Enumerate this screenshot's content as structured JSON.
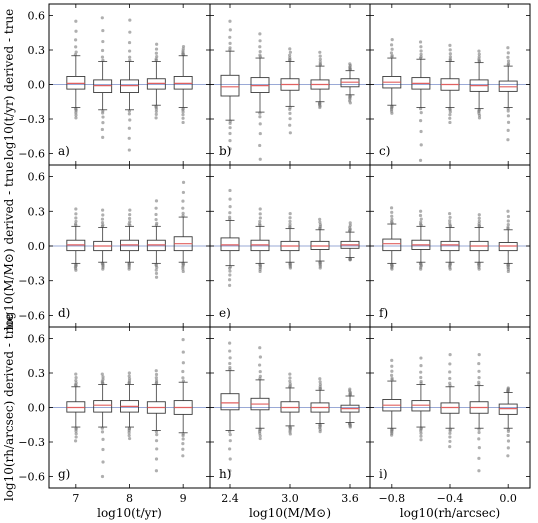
{
  "chart_data": {
    "type": "box",
    "layout": "3x3 grid, shared axes",
    "row_ylabels": [
      "log10(t/yr) derived - true",
      "log10(M/M⊙) derived - true",
      "log10(rh/arcsec) derived - true"
    ],
    "col_xlabels": [
      "log10(t/yr)",
      "log10(M/M⊙)",
      "log10(rh/arcsec)"
    ],
    "columns": [
      {
        "ticks": [
          7,
          8,
          9
        ],
        "tick_labels": [
          "7",
          "8",
          "9"
        ],
        "xlim": [
          6.5,
          9.5
        ],
        "box_x": [
          7,
          7.5,
          8,
          8.5,
          9
        ]
      },
      {
        "ticks": [
          2.4,
          3.0,
          3.6
        ],
        "tick_labels": [
          "2.4",
          "3.0",
          "3.6"
        ],
        "xlim": [
          2.2,
          3.8
        ],
        "box_x": [
          2.4,
          2.7,
          3.0,
          3.3,
          3.6
        ]
      },
      {
        "ticks": [
          -0.8,
          -0.4,
          0.0
        ],
        "tick_labels": [
          "−0.8",
          "−0.4",
          "0.0"
        ],
        "xlim": [
          -0.95,
          0.15
        ],
        "box_x": [
          -0.8,
          -0.6,
          -0.4,
          -0.2,
          0.0
        ]
      }
    ],
    "ylim": [
      -0.7,
      0.7
    ],
    "yticks": [
      0.6,
      0.3,
      0.0,
      -0.3,
      -0.6
    ],
    "ytick_labels": [
      "0.6",
      "0.3",
      "0.0",
      "−0.3",
      "−0.6"
    ],
    "zero_line": 0.0,
    "colors": {
      "box": "#3a3a3a",
      "median": "#e06060",
      "zero": "#9aa9d6",
      "flier": "#7a7a7a"
    },
    "panels": [
      {
        "label": "a)",
        "row": 0,
        "col": 0,
        "boxes": [
          {
            "q1": -0.04,
            "med": 0.01,
            "q3": 0.07,
            "wlo": -0.2,
            "whi": 0.25,
            "lo": -0.29,
            "hi": 0.55
          },
          {
            "q1": -0.07,
            "med": -0.01,
            "q3": 0.04,
            "wlo": -0.22,
            "whi": 0.2,
            "lo": -0.46,
            "hi": 0.58
          },
          {
            "q1": -0.07,
            "med": -0.01,
            "q3": 0.04,
            "wlo": -0.22,
            "whi": 0.2,
            "lo": -0.57,
            "hi": 0.56
          },
          {
            "q1": -0.04,
            "med": 0.01,
            "q3": 0.05,
            "wlo": -0.18,
            "whi": 0.2,
            "lo": -0.29,
            "hi": 0.35
          },
          {
            "q1": -0.04,
            "med": 0.01,
            "q3": 0.07,
            "wlo": -0.2,
            "whi": 0.25,
            "lo": -0.33,
            "hi": 0.33
          }
        ]
      },
      {
        "label": "b)",
        "row": 0,
        "col": 1,
        "boxes": [
          {
            "q1": -0.1,
            "med": -0.02,
            "q3": 0.08,
            "wlo": -0.31,
            "whi": 0.29,
            "lo": -0.56,
            "hi": 0.55
          },
          {
            "q1": -0.07,
            "med": -0.01,
            "q3": 0.06,
            "wlo": -0.24,
            "whi": 0.23,
            "lo": -0.65,
            "hi": 0.44
          },
          {
            "q1": -0.05,
            "med": 0.0,
            "q3": 0.05,
            "wlo": -0.19,
            "whi": 0.2,
            "lo": -0.42,
            "hi": 0.31
          },
          {
            "q1": -0.04,
            "med": 0.0,
            "q3": 0.04,
            "wlo": -0.15,
            "whi": 0.16,
            "lo": -0.2,
            "hi": 0.28
          },
          {
            "q1": -0.02,
            "med": 0.02,
            "q3": 0.05,
            "wlo": -0.09,
            "whi": 0.12,
            "lo": -0.16,
            "hi": 0.18
          }
        ]
      },
      {
        "label": "c)",
        "row": 0,
        "col": 2,
        "boxes": [
          {
            "q1": -0.03,
            "med": 0.02,
            "q3": 0.07,
            "wlo": -0.18,
            "whi": 0.23,
            "lo": -0.25,
            "hi": 0.39
          },
          {
            "q1": -0.04,
            "med": 0.01,
            "q3": 0.06,
            "wlo": -0.2,
            "whi": 0.22,
            "lo": -0.66,
            "hi": 0.37
          },
          {
            "q1": -0.05,
            "med": 0.0,
            "q3": 0.05,
            "wlo": -0.2,
            "whi": 0.2,
            "lo": -0.33,
            "hi": 0.34
          },
          {
            "q1": -0.06,
            "med": -0.01,
            "q3": 0.04,
            "wlo": -0.21,
            "whi": 0.19,
            "lo": -0.29,
            "hi": 0.29
          },
          {
            "q1": -0.06,
            "med": -0.02,
            "q3": 0.03,
            "wlo": -0.2,
            "whi": 0.16,
            "lo": -0.48,
            "hi": 0.32
          }
        ]
      },
      {
        "label": "d)",
        "row": 1,
        "col": 0,
        "boxes": [
          {
            "q1": -0.04,
            "med": 0.01,
            "q3": 0.05,
            "wlo": -0.15,
            "whi": 0.17,
            "lo": -0.21,
            "hi": 0.32
          },
          {
            "q1": -0.04,
            "med": 0.0,
            "q3": 0.04,
            "wlo": -0.14,
            "whi": 0.16,
            "lo": -0.2,
            "hi": 0.31
          },
          {
            "q1": -0.04,
            "med": 0.01,
            "q3": 0.05,
            "wlo": -0.14,
            "whi": 0.17,
            "lo": -0.2,
            "hi": 0.31
          },
          {
            "q1": -0.04,
            "med": 0.01,
            "q3": 0.05,
            "wlo": -0.15,
            "whi": 0.17,
            "lo": -0.27,
            "hi": 0.39
          },
          {
            "q1": -0.04,
            "med": 0.02,
            "q3": 0.08,
            "wlo": -0.14,
            "whi": 0.25,
            "lo": -0.22,
            "hi": 0.55
          }
        ]
      },
      {
        "label": "e)",
        "row": 1,
        "col": 1,
        "boxes": [
          {
            "q1": -0.04,
            "med": 0.01,
            "q3": 0.07,
            "wlo": -0.17,
            "whi": 0.22,
            "lo": -0.34,
            "hi": 0.48
          },
          {
            "q1": -0.04,
            "med": 0.01,
            "q3": 0.05,
            "wlo": -0.15,
            "whi": 0.17,
            "lo": -0.22,
            "hi": 0.32
          },
          {
            "q1": -0.04,
            "med": 0.0,
            "q3": 0.04,
            "wlo": -0.14,
            "whi": 0.15,
            "lo": -0.19,
            "hi": 0.28
          },
          {
            "q1": -0.03,
            "med": 0.0,
            "q3": 0.04,
            "wlo": -0.13,
            "whi": 0.14,
            "lo": -0.19,
            "hi": 0.23
          },
          {
            "q1": -0.02,
            "med": 0.01,
            "q3": 0.04,
            "wlo": -0.1,
            "whi": 0.12,
            "lo": -0.12,
            "hi": 0.2
          }
        ]
      },
      {
        "label": "f)",
        "row": 1,
        "col": 2,
        "boxes": [
          {
            "q1": -0.04,
            "med": 0.02,
            "q3": 0.06,
            "wlo": -0.15,
            "whi": 0.19,
            "lo": -0.2,
            "hi": 0.33
          },
          {
            "q1": -0.03,
            "med": 0.01,
            "q3": 0.05,
            "wlo": -0.14,
            "whi": 0.17,
            "lo": -0.2,
            "hi": 0.3
          },
          {
            "q1": -0.04,
            "med": 0.01,
            "q3": 0.04,
            "wlo": -0.14,
            "whi": 0.16,
            "lo": -0.2,
            "hi": 0.28
          },
          {
            "q1": -0.04,
            "med": 0.0,
            "q3": 0.04,
            "wlo": -0.14,
            "whi": 0.16,
            "lo": -0.2,
            "hi": 0.27
          },
          {
            "q1": -0.04,
            "med": 0.0,
            "q3": 0.03,
            "wlo": -0.15,
            "whi": 0.14,
            "lo": -0.22,
            "hi": 0.3
          }
        ]
      },
      {
        "label": "g)",
        "row": 2,
        "col": 0,
        "boxes": [
          {
            "q1": -0.04,
            "med": 0.0,
            "q3": 0.05,
            "wlo": -0.17,
            "whi": 0.18,
            "lo": -0.29,
            "hi": 0.29
          },
          {
            "q1": -0.04,
            "med": 0.02,
            "q3": 0.06,
            "wlo": -0.17,
            "whi": 0.2,
            "lo": -0.6,
            "hi": 0.29
          },
          {
            "q1": -0.04,
            "med": 0.01,
            "q3": 0.06,
            "wlo": -0.17,
            "whi": 0.2,
            "lo": -0.27,
            "hi": 0.3
          },
          {
            "q1": -0.05,
            "med": 0.0,
            "q3": 0.05,
            "wlo": -0.2,
            "whi": 0.2,
            "lo": -0.55,
            "hi": 0.32
          },
          {
            "q1": -0.06,
            "med": 0.0,
            "q3": 0.06,
            "wlo": -0.22,
            "whi": 0.22,
            "lo": -0.42,
            "hi": 0.59
          }
        ]
      },
      {
        "label": "h)",
        "row": 2,
        "col": 1,
        "boxes": [
          {
            "q1": -0.02,
            "med": 0.04,
            "q3": 0.12,
            "wlo": -0.2,
            "whi": 0.32,
            "lo": -0.55,
            "hi": 0.56
          },
          {
            "q1": -0.02,
            "med": 0.03,
            "q3": 0.08,
            "wlo": -0.18,
            "whi": 0.24,
            "lo": -0.27,
            "hi": 0.52
          },
          {
            "q1": -0.04,
            "med": 0.0,
            "q3": 0.05,
            "wlo": -0.16,
            "whi": 0.17,
            "lo": -0.23,
            "hi": 0.29
          },
          {
            "q1": -0.04,
            "med": 0.0,
            "q3": 0.04,
            "wlo": -0.14,
            "whi": 0.15,
            "lo": -0.21,
            "hi": 0.25
          },
          {
            "q1": -0.04,
            "med": -0.01,
            "q3": 0.02,
            "wlo": -0.13,
            "whi": 0.1,
            "lo": -0.17,
            "hi": 0.16
          }
        ]
      },
      {
        "label": "i)",
        "row": 2,
        "col": 2,
        "boxes": [
          {
            "q1": -0.03,
            "med": 0.02,
            "q3": 0.07,
            "wlo": -0.18,
            "whi": 0.23,
            "lo": -0.24,
            "hi": 0.41
          },
          {
            "q1": -0.03,
            "med": 0.02,
            "q3": 0.06,
            "wlo": -0.17,
            "whi": 0.2,
            "lo": -0.28,
            "hi": 0.43
          },
          {
            "q1": -0.05,
            "med": 0.0,
            "q3": 0.04,
            "wlo": -0.18,
            "whi": 0.18,
            "lo": -0.34,
            "hi": 0.46
          },
          {
            "q1": -0.05,
            "med": 0.0,
            "q3": 0.05,
            "wlo": -0.18,
            "whi": 0.19,
            "lo": -0.55,
            "hi": 0.46
          },
          {
            "q1": -0.06,
            "med": -0.01,
            "q3": 0.03,
            "wlo": -0.18,
            "whi": 0.13,
            "lo": -0.42,
            "hi": 0.17
          }
        ]
      }
    ]
  }
}
